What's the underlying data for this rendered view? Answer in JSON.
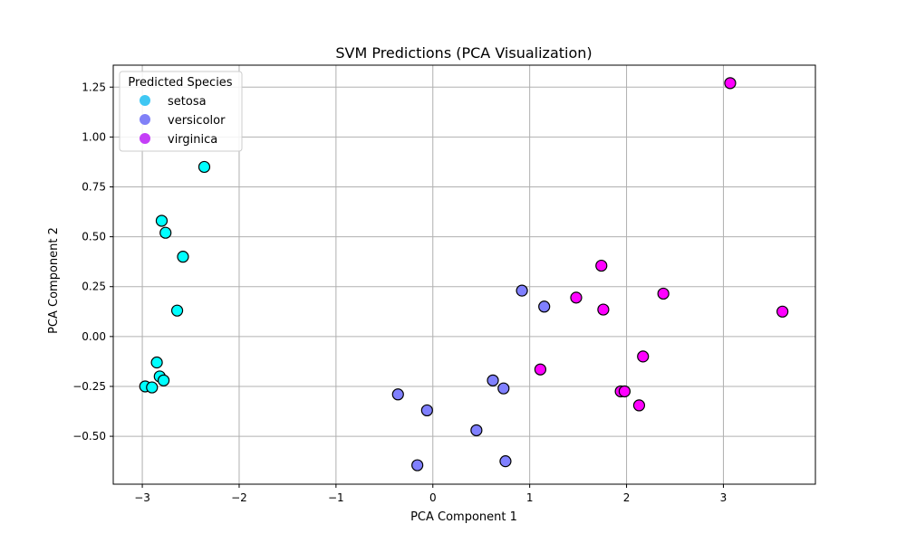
{
  "chart_data": {
    "type": "scatter",
    "title": "SVM Predictions (PCA Visualization)",
    "xlabel": "PCA Component 1",
    "ylabel": "PCA Component 2",
    "xlim": [
      -3.3,
      3.95
    ],
    "ylim": [
      -0.74,
      1.36
    ],
    "xticks": [
      -3,
      -2,
      -1,
      0,
      1,
      2,
      3
    ],
    "xtick_labels": [
      "−3",
      "−2",
      "−1",
      "0",
      "1",
      "2",
      "3"
    ],
    "yticks": [
      -0.5,
      -0.25,
      0.0,
      0.25,
      0.5,
      0.75,
      1.0,
      1.25
    ],
    "ytick_labels": [
      "−0.50",
      "−0.25",
      "0.00",
      "0.25",
      "0.50",
      "0.75",
      "1.00",
      "1.25"
    ],
    "grid": true,
    "legend": {
      "title": "Predicted Species",
      "placement": "top-left",
      "entries": [
        {
          "label": "setosa",
          "color": "#3fc7f3"
        },
        {
          "label": "versicolor",
          "color": "#8080f7"
        },
        {
          "label": "virginica",
          "color": "#c43ef7"
        }
      ]
    },
    "series": [
      {
        "name": "setosa",
        "color": "#00ffff",
        "points": [
          [
            -2.36,
            0.85
          ],
          [
            -2.8,
            0.58
          ],
          [
            -2.76,
            0.52
          ],
          [
            -2.58,
            0.4
          ],
          [
            -2.64,
            0.13
          ],
          [
            -2.85,
            -0.13
          ],
          [
            -2.82,
            -0.2
          ],
          [
            -2.78,
            -0.22
          ],
          [
            -2.97,
            -0.25
          ],
          [
            -2.9,
            -0.255
          ]
        ]
      },
      {
        "name": "versicolor",
        "color": "#8080ff",
        "points": [
          [
            0.92,
            0.23
          ],
          [
            1.15,
            0.15
          ],
          [
            0.62,
            -0.22
          ],
          [
            0.73,
            -0.26
          ],
          [
            -0.36,
            -0.29
          ],
          [
            -0.06,
            -0.37
          ],
          [
            0.45,
            -0.47
          ],
          [
            0.75,
            -0.625
          ],
          [
            -0.16,
            -0.645
          ]
        ]
      },
      {
        "name": "virginica",
        "color": "#ff00ff",
        "points": [
          [
            3.07,
            1.27
          ],
          [
            1.74,
            0.355
          ],
          [
            1.48,
            0.195
          ],
          [
            2.38,
            0.215
          ],
          [
            1.76,
            0.135
          ],
          [
            3.61,
            0.125
          ],
          [
            1.11,
            -0.165
          ],
          [
            2.17,
            -0.1
          ],
          [
            1.94,
            -0.275
          ],
          [
            1.98,
            -0.275
          ],
          [
            2.13,
            -0.345
          ]
        ]
      }
    ]
  }
}
